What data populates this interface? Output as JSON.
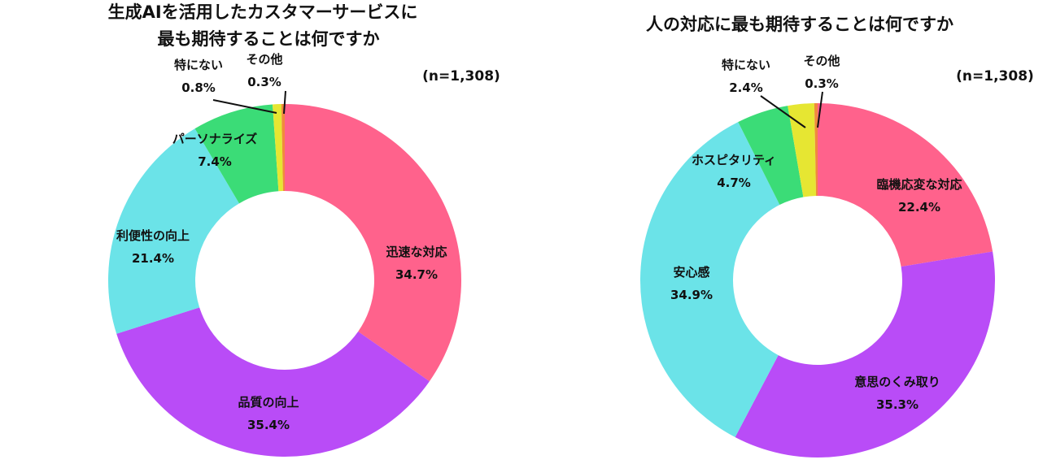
{
  "chart_data": [
    {
      "type": "pie",
      "donut": true,
      "title_lines": [
        "生成AIを活用したカスタマーサービスに",
        "最も期待することは何ですか"
      ],
      "n_label": "(n=1,308)",
      "slices": [
        {
          "name": "迅速な対応",
          "value": 34.7,
          "value_label": "34.7%",
          "color": "#ff628c"
        },
        {
          "name": "品質の向上",
          "value": 35.4,
          "value_label": "35.4%",
          "color": "#b94cf7"
        },
        {
          "name": "利便性の向上",
          "value": 21.4,
          "value_label": "21.4%",
          "color": "#6be3e8"
        },
        {
          "name": "パーソナライズ",
          "value": 7.4,
          "value_label": "7.4%",
          "color": "#3bdc77"
        },
        {
          "name": "特にない",
          "value": 0.8,
          "value_label": "0.8%",
          "color": "#e6e632"
        },
        {
          "name": "その他",
          "value": 0.3,
          "value_label": "0.3%",
          "color": "#f08a3c"
        }
      ]
    },
    {
      "type": "pie",
      "donut": true,
      "title_lines": [
        "人の対応に最も期待することは何ですか"
      ],
      "n_label": "(n=1,308)",
      "slices": [
        {
          "name": "臨機応変な対応",
          "value": 22.4,
          "value_label": "22.4%",
          "color": "#ff628c"
        },
        {
          "name": "意思のくみ取り",
          "value": 35.3,
          "value_label": "35.3%",
          "color": "#b94cf7"
        },
        {
          "name": "安心感",
          "value": 34.9,
          "value_label": "34.9%",
          "color": "#6be3e8"
        },
        {
          "name": "ホスピタリティ",
          "value": 4.7,
          "value_label": "4.7%",
          "color": "#3bdc77"
        },
        {
          "name": "特にない",
          "value": 2.4,
          "value_label": "2.4%",
          "color": "#e6e632"
        },
        {
          "name": "その他",
          "value": 0.3,
          "value_label": "0.3%",
          "color": "#f08a3c"
        }
      ]
    }
  ]
}
